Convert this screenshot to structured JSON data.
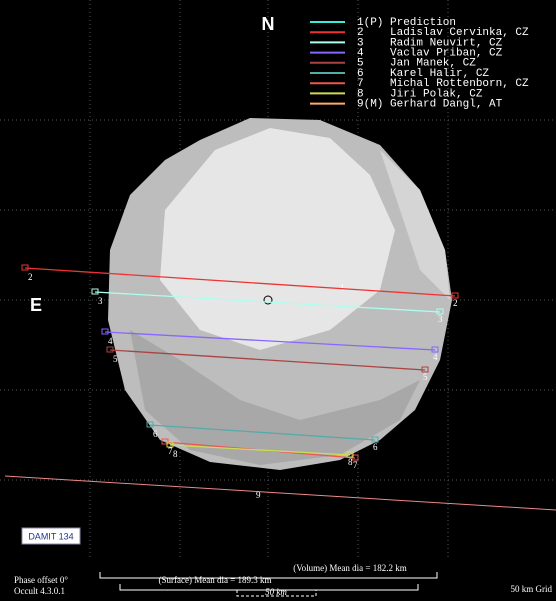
{
  "north": "N",
  "east": "E",
  "legend": [
    {
      "num": "1(P)",
      "name": "Prediction"
    },
    {
      "num": "2",
      "name": "Ladislav Cervinka, CZ"
    },
    {
      "num": "3",
      "name": "Radim Neuvirt, CZ"
    },
    {
      "num": "4",
      "name": "Vaclav Priban, CZ"
    },
    {
      "num": "5",
      "name": "Jan Manek, CZ"
    },
    {
      "num": "6",
      "name": "Karel Halir, CZ"
    },
    {
      "num": "7",
      "name": "Michal Rottenborn, CZ"
    },
    {
      "num": "8",
      "name": "Jiri Polak, CZ"
    },
    {
      "num": "9(M)",
      "name": "Gerhard Dangl, AT"
    }
  ],
  "prediction_label": "1",
  "miss_label": "9",
  "model": "DAMIT 134",
  "volume_dia": "(Volume) Mean dia = 182.2 km",
  "surface_dia": "(Surface) Mean dia = 189.3 km",
  "scale": "50 km",
  "grid": "50 km Grid",
  "phase": "Phase offset 0°",
  "version": "Occult 4.3.0.1"
}
